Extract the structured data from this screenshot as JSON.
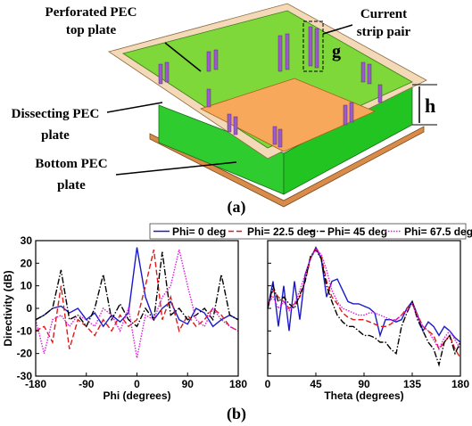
{
  "diagram": {
    "top_plate": [
      "Perforated PEC",
      "top plate"
    ],
    "strip_pair": [
      "Current",
      "strip pair"
    ],
    "gap": "g",
    "height": "h",
    "dissecting": [
      "Dissecting PEC",
      "plate"
    ],
    "bottom": [
      "Bottom PEC",
      "plate"
    ]
  },
  "caption_a": "(a)",
  "caption_b": "(b)",
  "chart_data": [
    {
      "type": "line",
      "xlabel": "Phi (degrees)",
      "ylabel": "Directivity (dB)",
      "x": [
        -180,
        -165,
        -150,
        -135,
        -120,
        -105,
        -90,
        -75,
        -60,
        -45,
        -30,
        -15,
        0,
        15,
        30,
        45,
        60,
        75,
        90,
        105,
        120,
        135,
        150,
        165,
        180
      ],
      "xlim": [
        -180,
        180
      ],
      "xticks": [
        -180,
        -90,
        0,
        90,
        180
      ],
      "ylim": [
        -30,
        30
      ],
      "yticks": [
        -30,
        -20,
        -10,
        0,
        10,
        20,
        30
      ],
      "series": [
        {
          "name": "Phi= 0 deg",
          "color": "#1a1acc",
          "dash": "solid",
          "values": [
            -5,
            -3,
            0,
            1,
            -2,
            0,
            -5,
            -2,
            -8,
            -3,
            -6,
            -2,
            27,
            5,
            -5,
            0,
            3,
            -5,
            -7,
            0,
            -2,
            -8,
            -5,
            -3,
            -5
          ]
        },
        {
          "name": "Phi= 22.5 deg",
          "color": "#e01818",
          "dash": "dashed",
          "values": [
            -10,
            -8,
            -15,
            10,
            -18,
            -5,
            -8,
            -12,
            -5,
            -10,
            -3,
            -8,
            -5,
            10,
            26,
            -5,
            5,
            -10,
            -3,
            -8,
            -5,
            0,
            -3,
            -8,
            -10
          ]
        },
        {
          "name": "Phi= 45 deg",
          "color": "#000000",
          "dash": "dashdot",
          "values": [
            -5,
            -3,
            0,
            17,
            -5,
            -3,
            -8,
            0,
            15,
            -5,
            2,
            -5,
            -8,
            0,
            -5,
            25,
            -3,
            0,
            -5,
            -3,
            0,
            -5,
            15,
            -3,
            -5
          ]
        },
        {
          "name": "Phi= 67.5 deg",
          "color": "#e018e0",
          "dash": "dotted",
          "values": [
            -5,
            -20,
            -5,
            -3,
            -8,
            -3,
            -5,
            -8,
            0,
            -3,
            -10,
            0,
            -22,
            -3,
            -5,
            5,
            10,
            26,
            10,
            -5,
            -8,
            0,
            -5,
            -8,
            -10
          ]
        }
      ]
    },
    {
      "type": "line",
      "xlabel": "Theta (degrees)",
      "x": [
        0,
        5,
        10,
        15,
        20,
        25,
        30,
        35,
        40,
        45,
        50,
        55,
        60,
        65,
        70,
        75,
        80,
        85,
        90,
        95,
        100,
        105,
        110,
        115,
        120,
        125,
        130,
        135,
        140,
        145,
        150,
        155,
        160,
        165,
        170,
        175,
        180
      ],
      "xlim": [
        0,
        180
      ],
      "xticks": [
        0,
        45,
        90,
        135,
        180
      ],
      "ylim": [
        -30,
        30
      ],
      "yticks": [
        -30,
        -20,
        -10,
        0,
        10,
        20,
        30
      ],
      "series": [
        {
          "color": "#1a1acc",
          "dash": "solid",
          "values": [
            0,
            12,
            -8,
            10,
            -10,
            12,
            -5,
            15,
            22,
            27,
            22,
            5,
            12,
            13,
            8,
            3,
            2,
            2,
            1,
            0,
            -2,
            -12,
            -5,
            -5,
            -6,
            -5,
            0,
            3,
            -3,
            -10,
            -6,
            -8,
            -12,
            -8,
            -10,
            -13,
            -15
          ]
        },
        {
          "color": "#e01818",
          "dash": "dashed",
          "values": [
            0,
            8,
            5,
            3,
            0,
            2,
            5,
            12,
            22,
            27,
            23,
            12,
            5,
            2,
            -2,
            -4,
            -5,
            -5,
            -5,
            -6,
            -7,
            -8,
            -8,
            -7,
            -5,
            -3,
            0,
            2,
            -3,
            -8,
            -10,
            -12,
            -18,
            -15,
            -12,
            -18,
            -22
          ]
        },
        {
          "color": "#000000",
          "dash": "dashdot",
          "values": [
            0,
            10,
            3,
            5,
            2,
            0,
            6,
            12,
            23,
            26,
            22,
            10,
            3,
            -3,
            -6,
            -8,
            -8,
            -10,
            -12,
            -12,
            -13,
            -15,
            -15,
            -18,
            -20,
            -8,
            -2,
            3,
            -5,
            -10,
            -15,
            -18,
            -25,
            -15,
            -12,
            -20,
            -15
          ]
        },
        {
          "color": "#e018e0",
          "dash": "dotted",
          "values": [
            2,
            5,
            0,
            3,
            -1,
            2,
            8,
            15,
            22,
            26,
            24,
            17,
            8,
            3,
            0,
            -1,
            -2,
            -3,
            -3,
            -2,
            -2,
            -3,
            -4,
            -5,
            -5,
            -3,
            -1,
            2,
            -4,
            -8,
            -10,
            -14,
            -18,
            -13,
            -10,
            -14,
            -18
          ]
        }
      ]
    }
  ]
}
